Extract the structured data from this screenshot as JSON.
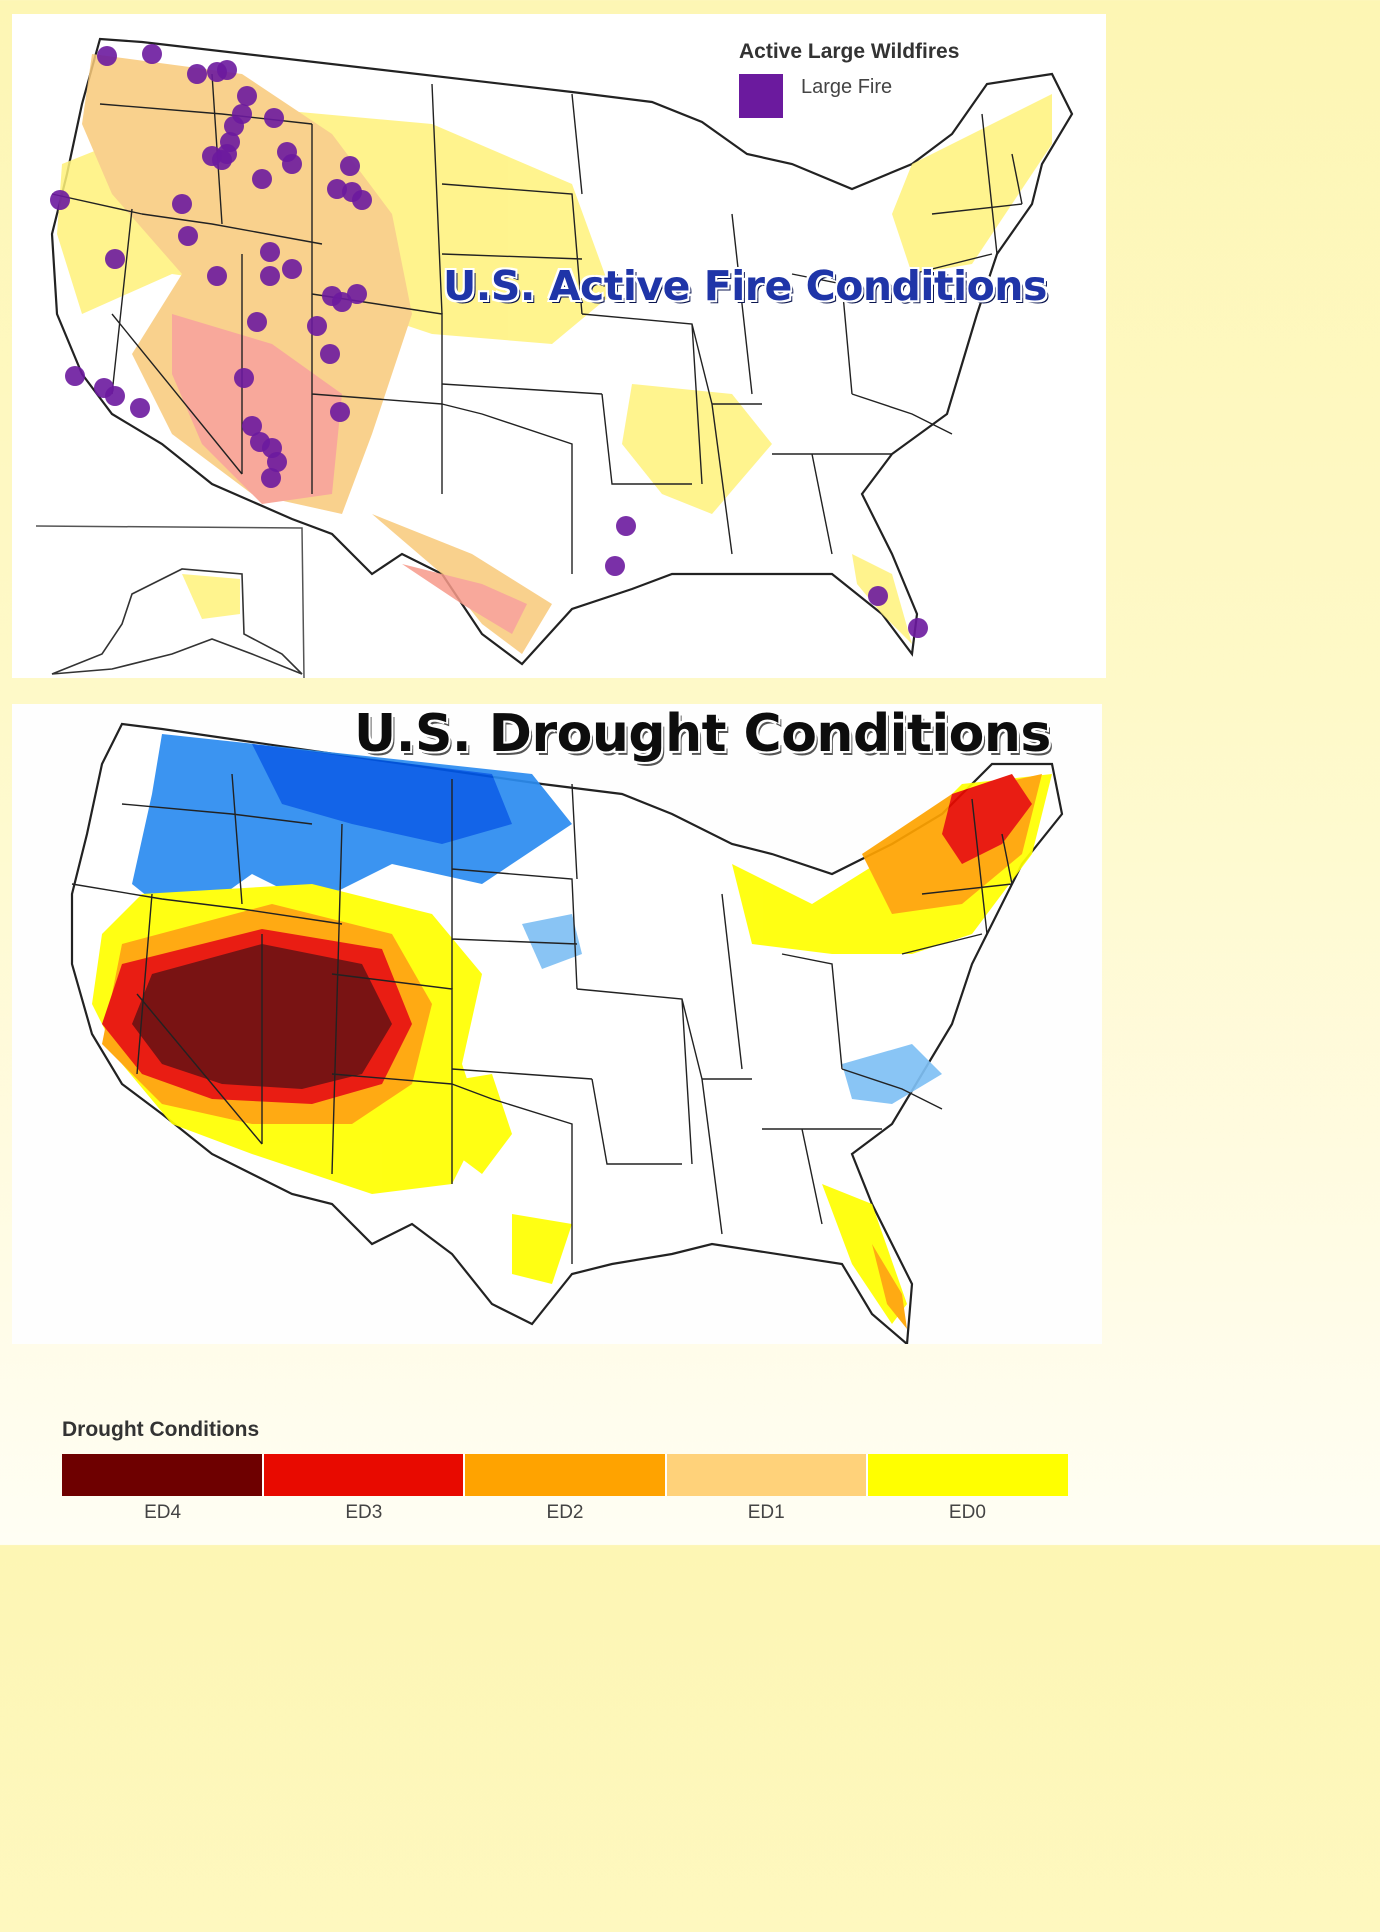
{
  "fire_map": {
    "title": "U.S. Active Fire Conditions",
    "legend": {
      "title": "Active Large Wildfires",
      "item_label": "Large Fire",
      "item_color": "#6b1a9e"
    }
  },
  "drought_map": {
    "title": "U.S. Drought Conditions",
    "legend": {
      "title": "Drought Conditions",
      "categories": [
        {
          "label": "ED4",
          "color": "#6e0000"
        },
        {
          "label": "ED3",
          "color": "#e80a00"
        },
        {
          "label": "ED2",
          "color": "#ffa300"
        },
        {
          "label": "ED1",
          "color": "#ffd27a"
        },
        {
          "label": "ED0",
          "color": "#ffff00"
        }
      ]
    },
    "wet_colors": [
      "#0057e7",
      "#2b8cf0",
      "#7fc0f4"
    ]
  }
}
